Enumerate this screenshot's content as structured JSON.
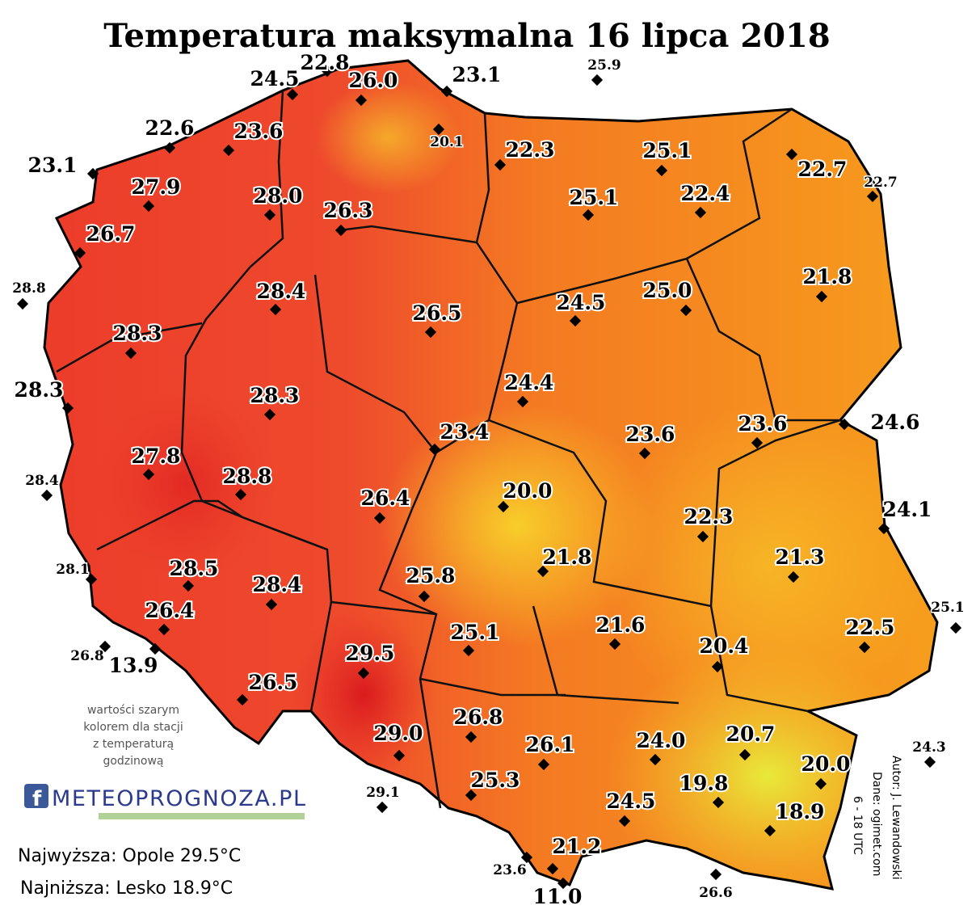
{
  "title": "Temperatura maksymalna 16 lipca 2018",
  "stations": [
    "24.5",
    "22.8",
    "26.0",
    "23.1",
    "25.9",
    "22.6",
    "23.6",
    "23.1",
    "20.1",
    "22.3",
    "25.1",
    "22.7",
    "22.7",
    "27.9",
    "28.0",
    "26.3",
    "25.1",
    "22.4",
    "26.7",
    "28.8",
    "28.4",
    "21.8",
    "26.5",
    "24.5",
    "25.0",
    "28.3",
    "28.3",
    "24.4",
    "28.3",
    "24.6",
    "23.4",
    "23.6",
    "23.6",
    "27.8",
    "28.8",
    "28.4",
    "26.4",
    "20.0",
    "24.1",
    "22.3",
    "21.8",
    "21.3",
    "28.1",
    "28.5",
    "25.8",
    "28.4",
    "26.4",
    "25.1",
    "22.5",
    "25.1",
    "21.6",
    "20.4",
    "26.8",
    "13.9",
    "29.5",
    "26.5",
    "26.8",
    "26.1",
    "24.0",
    "20.7",
    "29.0",
    "20.0",
    "24.3",
    "29.1",
    "25.3",
    "19.8",
    "24.5",
    "18.9",
    "21.2",
    "23.6",
    "11.0",
    "26.6"
  ],
  "note": [
    "wartości szarym",
    "kolorem dla stacji",
    "z temperaturą",
    "godzinową"
  ],
  "logo": "METEOPROGNOZA.PL",
  "extremes": [
    "Najwyższa: Opole 29.5°C",
    "Najniższa: Lesko 18.9°C"
  ],
  "credits": [
    "Autor: J. Lewandowski",
    "Dane: ogimet.com",
    "6 - 18 UTC"
  ]
}
